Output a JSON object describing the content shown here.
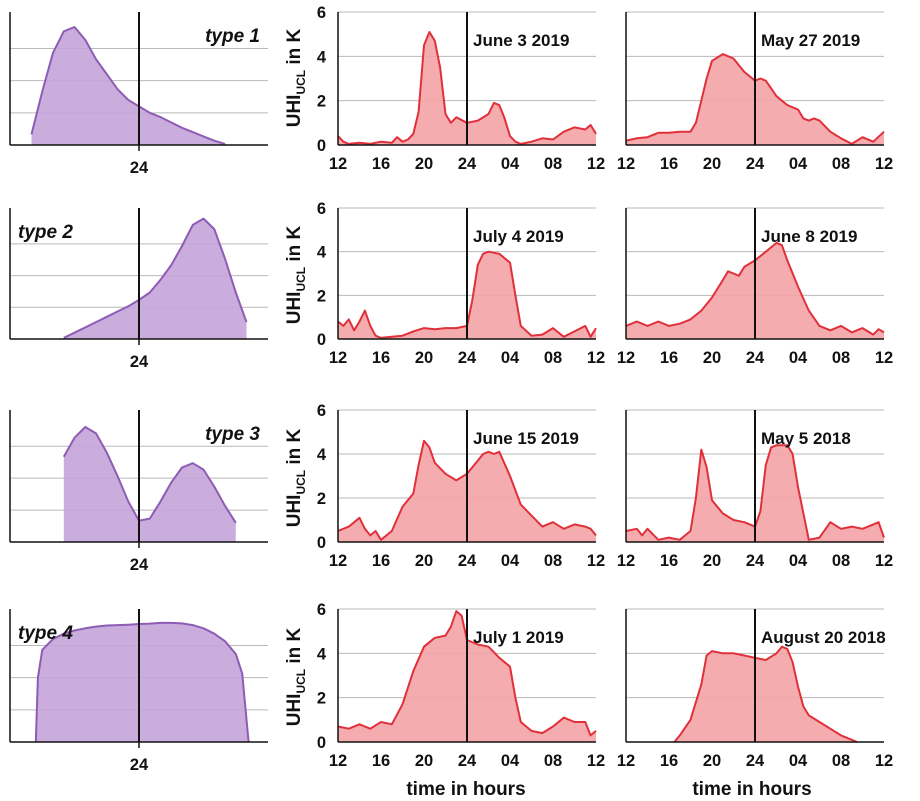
{
  "ylabel_main": "UHI",
  "ylabel_sub": "UCL",
  "ylabel_tail": " in K",
  "xlabel": "time in hours",
  "type_center_tick": "24",
  "chart_data": [
    {
      "type": "area",
      "group": "type",
      "row": 0,
      "title": "type 1",
      "color": "#8e5bb5",
      "fill": "#c4a4d8",
      "x": [
        -10,
        -9,
        -8,
        -7,
        -6,
        -5,
        -4,
        -3,
        -2,
        -1,
        0,
        1,
        2,
        3,
        4,
        5,
        6,
        7,
        8
      ],
      "values": [
        0.5,
        2.5,
        4.3,
        5.3,
        5.5,
        4.9,
        4.0,
        3.3,
        2.6,
        2.1,
        1.8,
        1.5,
        1.3,
        1.05,
        0.8,
        0.6,
        0.4,
        0.2,
        0.05
      ]
    },
    {
      "type": "area",
      "group": "type",
      "row": 1,
      "title": "type 2",
      "color": "#8e5bb5",
      "fill": "#c4a4d8",
      "x": [
        -7,
        -6,
        -5,
        -4,
        -3,
        -2,
        -1,
        0,
        1,
        2,
        3,
        4,
        5,
        6,
        7,
        8,
        9,
        10
      ],
      "values": [
        0.05,
        0.3,
        0.55,
        0.8,
        1.05,
        1.3,
        1.55,
        1.85,
        2.2,
        2.8,
        3.5,
        4.4,
        5.4,
        5.7,
        5.2,
        3.8,
        2.2,
        0.8
      ]
    },
    {
      "type": "area",
      "group": "type",
      "row": 2,
      "title": "type 3",
      "color": "#8e5bb5",
      "fill": "#c4a4d8",
      "x": [
        -7,
        -6,
        -5,
        -4,
        -3,
        -2,
        -1,
        0,
        1,
        2,
        3,
        4,
        5,
        6,
        7,
        8,
        9
      ],
      "values": [
        4.0,
        4.9,
        5.4,
        5.1,
        4.2,
        3.1,
        1.9,
        1.0,
        1.1,
        1.9,
        2.8,
        3.5,
        3.7,
        3.4,
        2.6,
        1.7,
        0.9
      ]
    },
    {
      "type": "area",
      "group": "type",
      "row": 3,
      "title": "type 4",
      "color": "#8e5bb5",
      "fill": "#c4a4d8",
      "x": [
        -9.6,
        -9.4,
        -9,
        -8,
        -7,
        -6,
        -5,
        -4,
        -3,
        -2,
        -1,
        0,
        1,
        2,
        3,
        4,
        5,
        6,
        7,
        8,
        9,
        9.6,
        10.2
      ],
      "values": [
        0.0,
        3.0,
        4.3,
        4.8,
        5.05,
        5.2,
        5.3,
        5.38,
        5.43,
        5.45,
        5.47,
        5.5,
        5.52,
        5.55,
        5.55,
        5.53,
        5.45,
        5.3,
        5.05,
        4.7,
        4.1,
        3.2,
        0.0
      ]
    },
    {
      "type": "area",
      "group": "obs",
      "row": 0,
      "col": 1,
      "title": "June 3 2019",
      "color": "#e0303a",
      "fill": "#f4a3a6",
      "ylim": [
        0,
        6
      ],
      "yticks": [
        0,
        2,
        4,
        6
      ],
      "xticklabels": [
        "12",
        "16",
        "20",
        "24",
        "04",
        "08",
        "12"
      ],
      "x": [
        12,
        12.5,
        13,
        14,
        15,
        16,
        17,
        17.5,
        18,
        18.5,
        19,
        19.5,
        20,
        20.5,
        21,
        21.5,
        22,
        22.5,
        23,
        24,
        25,
        26,
        26.5,
        27,
        27.5,
        28,
        28.5,
        29,
        30,
        31,
        32,
        33,
        34,
        35,
        35.5,
        36
      ],
      "values": [
        0.4,
        0.15,
        0.05,
        0.1,
        0.05,
        0.15,
        0.1,
        0.35,
        0.15,
        0.25,
        0.5,
        1.5,
        4.5,
        5.1,
        4.7,
        3.5,
        1.4,
        1.0,
        1.25,
        1.0,
        1.1,
        1.4,
        1.9,
        1.8,
        1.2,
        0.4,
        0.15,
        0.05,
        0.15,
        0.3,
        0.25,
        0.6,
        0.8,
        0.7,
        0.9,
        0.5
      ]
    },
    {
      "type": "area",
      "group": "obs",
      "row": 0,
      "col": 2,
      "title": "May 27 2019",
      "color": "#e0303a",
      "fill": "#f4a3a6",
      "ylim": [
        0,
        6
      ],
      "yticks": [
        0,
        2,
        4,
        6
      ],
      "xticklabels": [
        "12",
        "16",
        "20",
        "24",
        "04",
        "08",
        "12"
      ],
      "x": [
        12,
        13,
        14,
        15,
        16,
        17,
        18,
        18.5,
        19,
        19.5,
        20,
        21,
        22,
        22.5,
        23,
        24,
        24.5,
        25,
        26,
        27,
        28,
        28.5,
        29,
        29.5,
        30,
        31,
        32,
        33,
        34,
        35,
        36
      ],
      "values": [
        0.2,
        0.3,
        0.35,
        0.55,
        0.55,
        0.6,
        0.6,
        1.0,
        2.0,
        3.0,
        3.8,
        4.1,
        3.9,
        3.6,
        3.3,
        2.9,
        3.0,
        2.9,
        2.2,
        1.8,
        1.6,
        1.2,
        1.1,
        1.2,
        1.1,
        0.6,
        0.3,
        0.05,
        0.35,
        0.15,
        0.6
      ]
    },
    {
      "type": "area",
      "group": "obs",
      "row": 1,
      "col": 1,
      "title": "July 4 2019",
      "color": "#e0303a",
      "fill": "#f4a3a6",
      "ylim": [
        0,
        6
      ],
      "yticks": [
        0,
        2,
        4,
        6
      ],
      "xticklabels": [
        "12",
        "16",
        "20",
        "24",
        "04",
        "08",
        "12"
      ],
      "x": [
        12,
        12.5,
        13,
        13.5,
        14,
        14.5,
        15,
        15.5,
        16,
        17,
        18,
        19,
        20,
        21,
        22,
        23,
        24,
        24.5,
        25,
        25.5,
        26,
        27,
        28,
        28.5,
        29,
        30,
        31,
        32,
        33,
        34,
        35,
        35.5,
        36
      ],
      "values": [
        0.8,
        0.6,
        0.9,
        0.4,
        0.8,
        1.3,
        0.6,
        0.15,
        0.05,
        0.1,
        0.15,
        0.35,
        0.5,
        0.45,
        0.5,
        0.5,
        0.6,
        1.8,
        3.4,
        3.9,
        4.0,
        3.9,
        3.5,
        2.0,
        0.6,
        0.15,
        0.2,
        0.5,
        0.1,
        0.35,
        0.6,
        0.1,
        0.5
      ]
    },
    {
      "type": "area",
      "group": "obs",
      "row": 1,
      "col": 2,
      "title": "June 8 2019",
      "color": "#e0303a",
      "fill": "#f4a3a6",
      "ylim": [
        0,
        6
      ],
      "yticks": [
        0,
        2,
        4,
        6
      ],
      "xticklabels": [
        "12",
        "16",
        "20",
        "24",
        "04",
        "08",
        "12"
      ],
      "x": [
        12,
        13,
        14,
        15,
        16,
        17,
        18,
        19,
        20,
        21,
        21.5,
        22,
        22.5,
        23,
        24,
        25,
        26,
        26.5,
        27,
        28,
        29,
        30,
        31,
        32,
        33,
        34,
        35,
        35.5,
        36
      ],
      "values": [
        0.6,
        0.8,
        0.6,
        0.8,
        0.6,
        0.7,
        0.9,
        1.3,
        1.9,
        2.7,
        3.1,
        3.0,
        2.9,
        3.3,
        3.6,
        4.0,
        4.4,
        4.3,
        3.6,
        2.4,
        1.3,
        0.6,
        0.4,
        0.6,
        0.3,
        0.5,
        0.2,
        0.45,
        0.3
      ]
    },
    {
      "type": "area",
      "group": "obs",
      "row": 2,
      "col": 1,
      "title": "June 15 2019",
      "color": "#e0303a",
      "fill": "#f4a3a6",
      "ylim": [
        0,
        6
      ],
      "yticks": [
        0,
        2,
        4,
        6
      ],
      "xticklabels": [
        "12",
        "16",
        "20",
        "24",
        "04",
        "08",
        "12"
      ],
      "x": [
        12,
        13,
        14,
        14.5,
        15,
        15.5,
        16,
        17,
        18,
        19,
        19.5,
        20,
        20.5,
        21,
        22,
        23,
        24,
        25,
        25.5,
        26,
        26.5,
        27,
        28,
        29,
        30,
        31,
        32,
        33,
        34,
        35,
        35.5,
        36
      ],
      "values": [
        0.5,
        0.7,
        1.1,
        0.6,
        0.3,
        0.5,
        0.1,
        0.5,
        1.6,
        2.2,
        3.5,
        4.6,
        4.3,
        3.6,
        3.1,
        2.8,
        3.1,
        3.7,
        4.0,
        4.1,
        4.0,
        4.1,
        3.0,
        1.7,
        1.2,
        0.7,
        0.9,
        0.6,
        0.8,
        0.7,
        0.6,
        0.3
      ]
    },
    {
      "type": "area",
      "group": "obs",
      "row": 2,
      "col": 2,
      "title": "May 5 2018",
      "color": "#e0303a",
      "fill": "#f4a3a6",
      "ylim": [
        0,
        6
      ],
      "yticks": [
        0,
        2,
        4,
        6
      ],
      "xticklabels": [
        "12",
        "16",
        "20",
        "24",
        "04",
        "08",
        "12"
      ],
      "x": [
        12,
        13,
        13.5,
        14,
        15,
        16,
        17,
        17.5,
        18,
        18.5,
        19,
        19.5,
        20,
        21,
        22,
        23,
        24,
        24.5,
        25,
        25.5,
        26,
        27,
        27.5,
        28,
        29,
        30,
        31,
        32,
        33,
        34,
        35,
        35.5,
        36
      ],
      "values": [
        0.5,
        0.6,
        0.3,
        0.6,
        0.1,
        0.2,
        0.1,
        0.3,
        0.5,
        2.0,
        4.2,
        3.4,
        1.9,
        1.3,
        1.0,
        0.9,
        0.7,
        1.4,
        3.5,
        4.3,
        4.4,
        4.4,
        4.0,
        2.5,
        0.1,
        0.2,
        0.9,
        0.6,
        0.7,
        0.6,
        0.8,
        0.9,
        0.2
      ]
    },
    {
      "type": "area",
      "group": "obs",
      "row": 3,
      "col": 1,
      "title": "July 1 2019",
      "color": "#e0303a",
      "fill": "#f4a3a6",
      "ylim": [
        0,
        6
      ],
      "yticks": [
        0,
        2,
        4,
        6
      ],
      "xticklabels": [
        "12",
        "16",
        "20",
        "24",
        "04",
        "08",
        "12"
      ],
      "x": [
        12,
        13,
        14,
        15,
        16,
        17,
        18,
        19,
        20,
        21,
        22,
        22.5,
        23,
        23.5,
        24,
        25,
        26,
        27,
        28,
        28.5,
        29,
        30,
        31,
        32,
        33,
        34,
        35,
        35.5,
        36
      ],
      "values": [
        0.7,
        0.6,
        0.8,
        0.6,
        0.9,
        0.8,
        1.7,
        3.2,
        4.3,
        4.7,
        4.8,
        5.2,
        5.9,
        5.7,
        4.6,
        4.4,
        4.3,
        3.8,
        3.4,
        2.0,
        0.9,
        0.5,
        0.4,
        0.7,
        1.1,
        0.9,
        0.9,
        0.3,
        0.5
      ]
    },
    {
      "type": "area",
      "group": "obs",
      "row": 3,
      "col": 2,
      "title": "August 20 2018",
      "color": "#e0303a",
      "fill": "#f4a3a6",
      "ylim": [
        0,
        6
      ],
      "yticks": [
        0,
        2,
        4,
        6
      ],
      "xticklabels": [
        "12",
        "16",
        "20",
        "24",
        "04",
        "08",
        "12"
      ],
      "x": [
        16.5,
        17,
        18,
        19,
        19.5,
        20,
        21,
        22,
        23,
        24,
        25,
        26,
        26.5,
        27,
        27.5,
        28,
        28.5,
        29,
        30,
        31,
        32,
        33,
        33.5
      ],
      "values": [
        0.0,
        0.3,
        1.0,
        2.6,
        3.9,
        4.1,
        4.0,
        4.0,
        3.9,
        3.8,
        3.7,
        4.0,
        4.3,
        4.2,
        3.6,
        2.5,
        1.6,
        1.2,
        0.9,
        0.6,
        0.3,
        0.1,
        0.0
      ]
    }
  ]
}
